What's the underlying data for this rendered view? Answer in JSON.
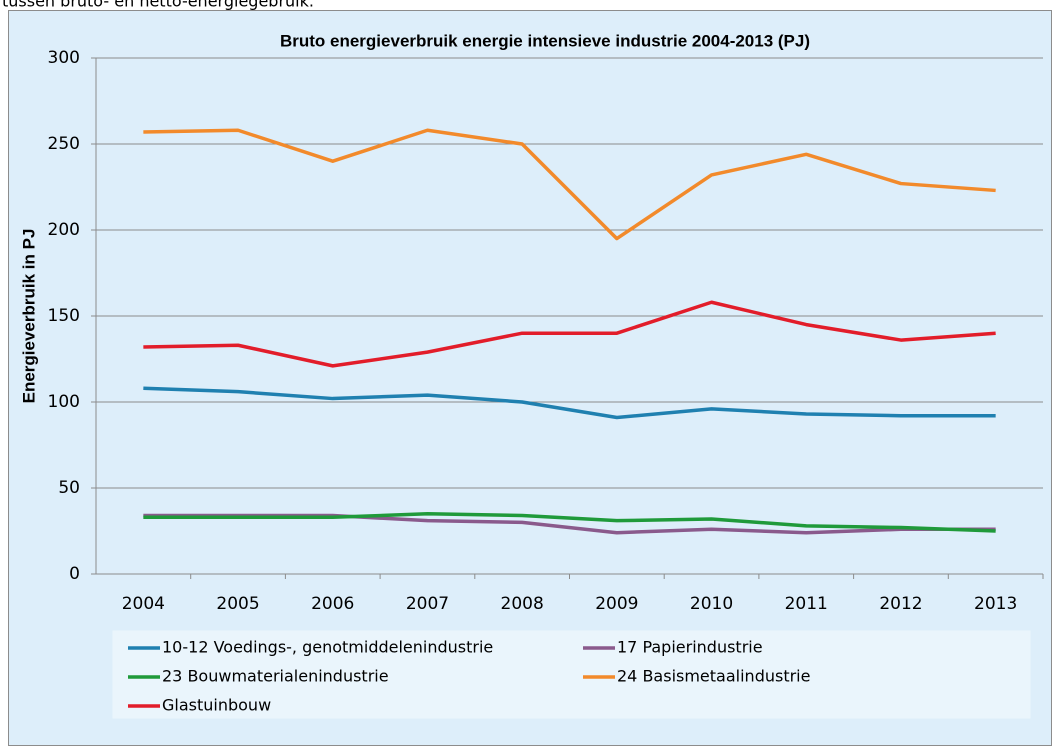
{
  "header_text": "tussen bruto- en netto-energiegebruik.",
  "chart_data": {
    "type": "line",
    "title": "Bruto energieverbruik energie intensieve industrie 2004-2013 (PJ)",
    "y_label": "Energieverbruik in PJ",
    "categories": [
      "2004",
      "2005",
      "2006",
      "2007",
      "2008",
      "2009",
      "2010",
      "2011",
      "2012",
      "2013"
    ],
    "series": [
      {
        "name": "10-12 Voedings-, genotmiddelenindustrie",
        "color": "#1f80b0",
        "values": [
          108,
          106,
          102,
          104,
          100,
          91,
          96,
          93,
          92,
          92
        ]
      },
      {
        "name": "17 Papierindustrie",
        "color": "#8a5a8c",
        "values": [
          34,
          34,
          34,
          31,
          30,
          24,
          26,
          24,
          26,
          26
        ]
      },
      {
        "name": "23 Bouwmaterialenindustrie",
        "color": "#1f9a3a",
        "values": [
          33,
          33,
          33,
          35,
          34,
          31,
          32,
          28,
          27,
          25
        ]
      },
      {
        "name": "24 Basismetaalindustrie",
        "color": "#f28a2b",
        "values": [
          257,
          258,
          240,
          258,
          250,
          195,
          232,
          244,
          227,
          223
        ]
      },
      {
        "name": "Glastuinbouw",
        "color": "#e21d2a",
        "values": [
          132,
          133,
          121,
          129,
          140,
          140,
          158,
          145,
          136,
          140
        ]
      }
    ],
    "ylim": [
      0,
      300
    ],
    "yticks": [
      0,
      50,
      100,
      150,
      200,
      250,
      300
    ],
    "grid": true
  }
}
